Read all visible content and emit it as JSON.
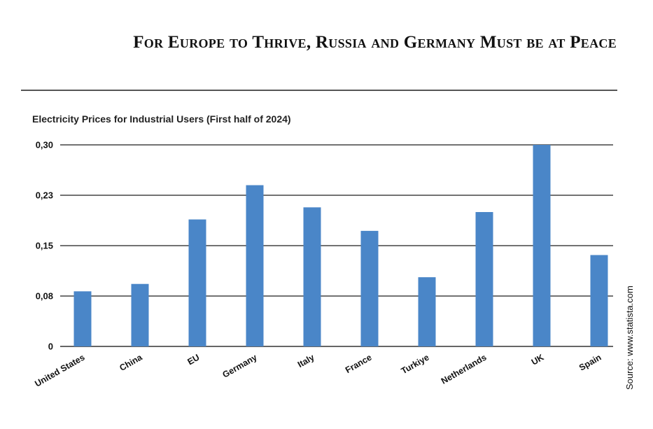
{
  "headline": "For Europe to Thrive, Russia and Germany Must be at Peace",
  "source": "Source: www.statista.com",
  "chart_data": {
    "type": "bar",
    "title": "Electricity Prices for Industrial Users (First half of 2024)",
    "xlabel": "",
    "ylabel": "",
    "categories": [
      "United States",
      "China",
      "EU",
      "Germany",
      "Italy",
      "France",
      "Turkiye",
      "Netherlands",
      "UK",
      "Spain"
    ],
    "values": [
      0.082,
      0.093,
      0.189,
      0.24,
      0.207,
      0.172,
      0.103,
      0.2,
      0.3,
      0.136
    ],
    "ylim": [
      0,
      0.3
    ],
    "yticks": [
      0,
      0.075,
      0.15,
      0.225,
      0.3
    ],
    "ytick_labels": [
      "0",
      "0,08",
      "0,15",
      "0,23",
      "0,30"
    ],
    "bar_color": "#4a86c8",
    "grid": true,
    "legend": "none"
  }
}
